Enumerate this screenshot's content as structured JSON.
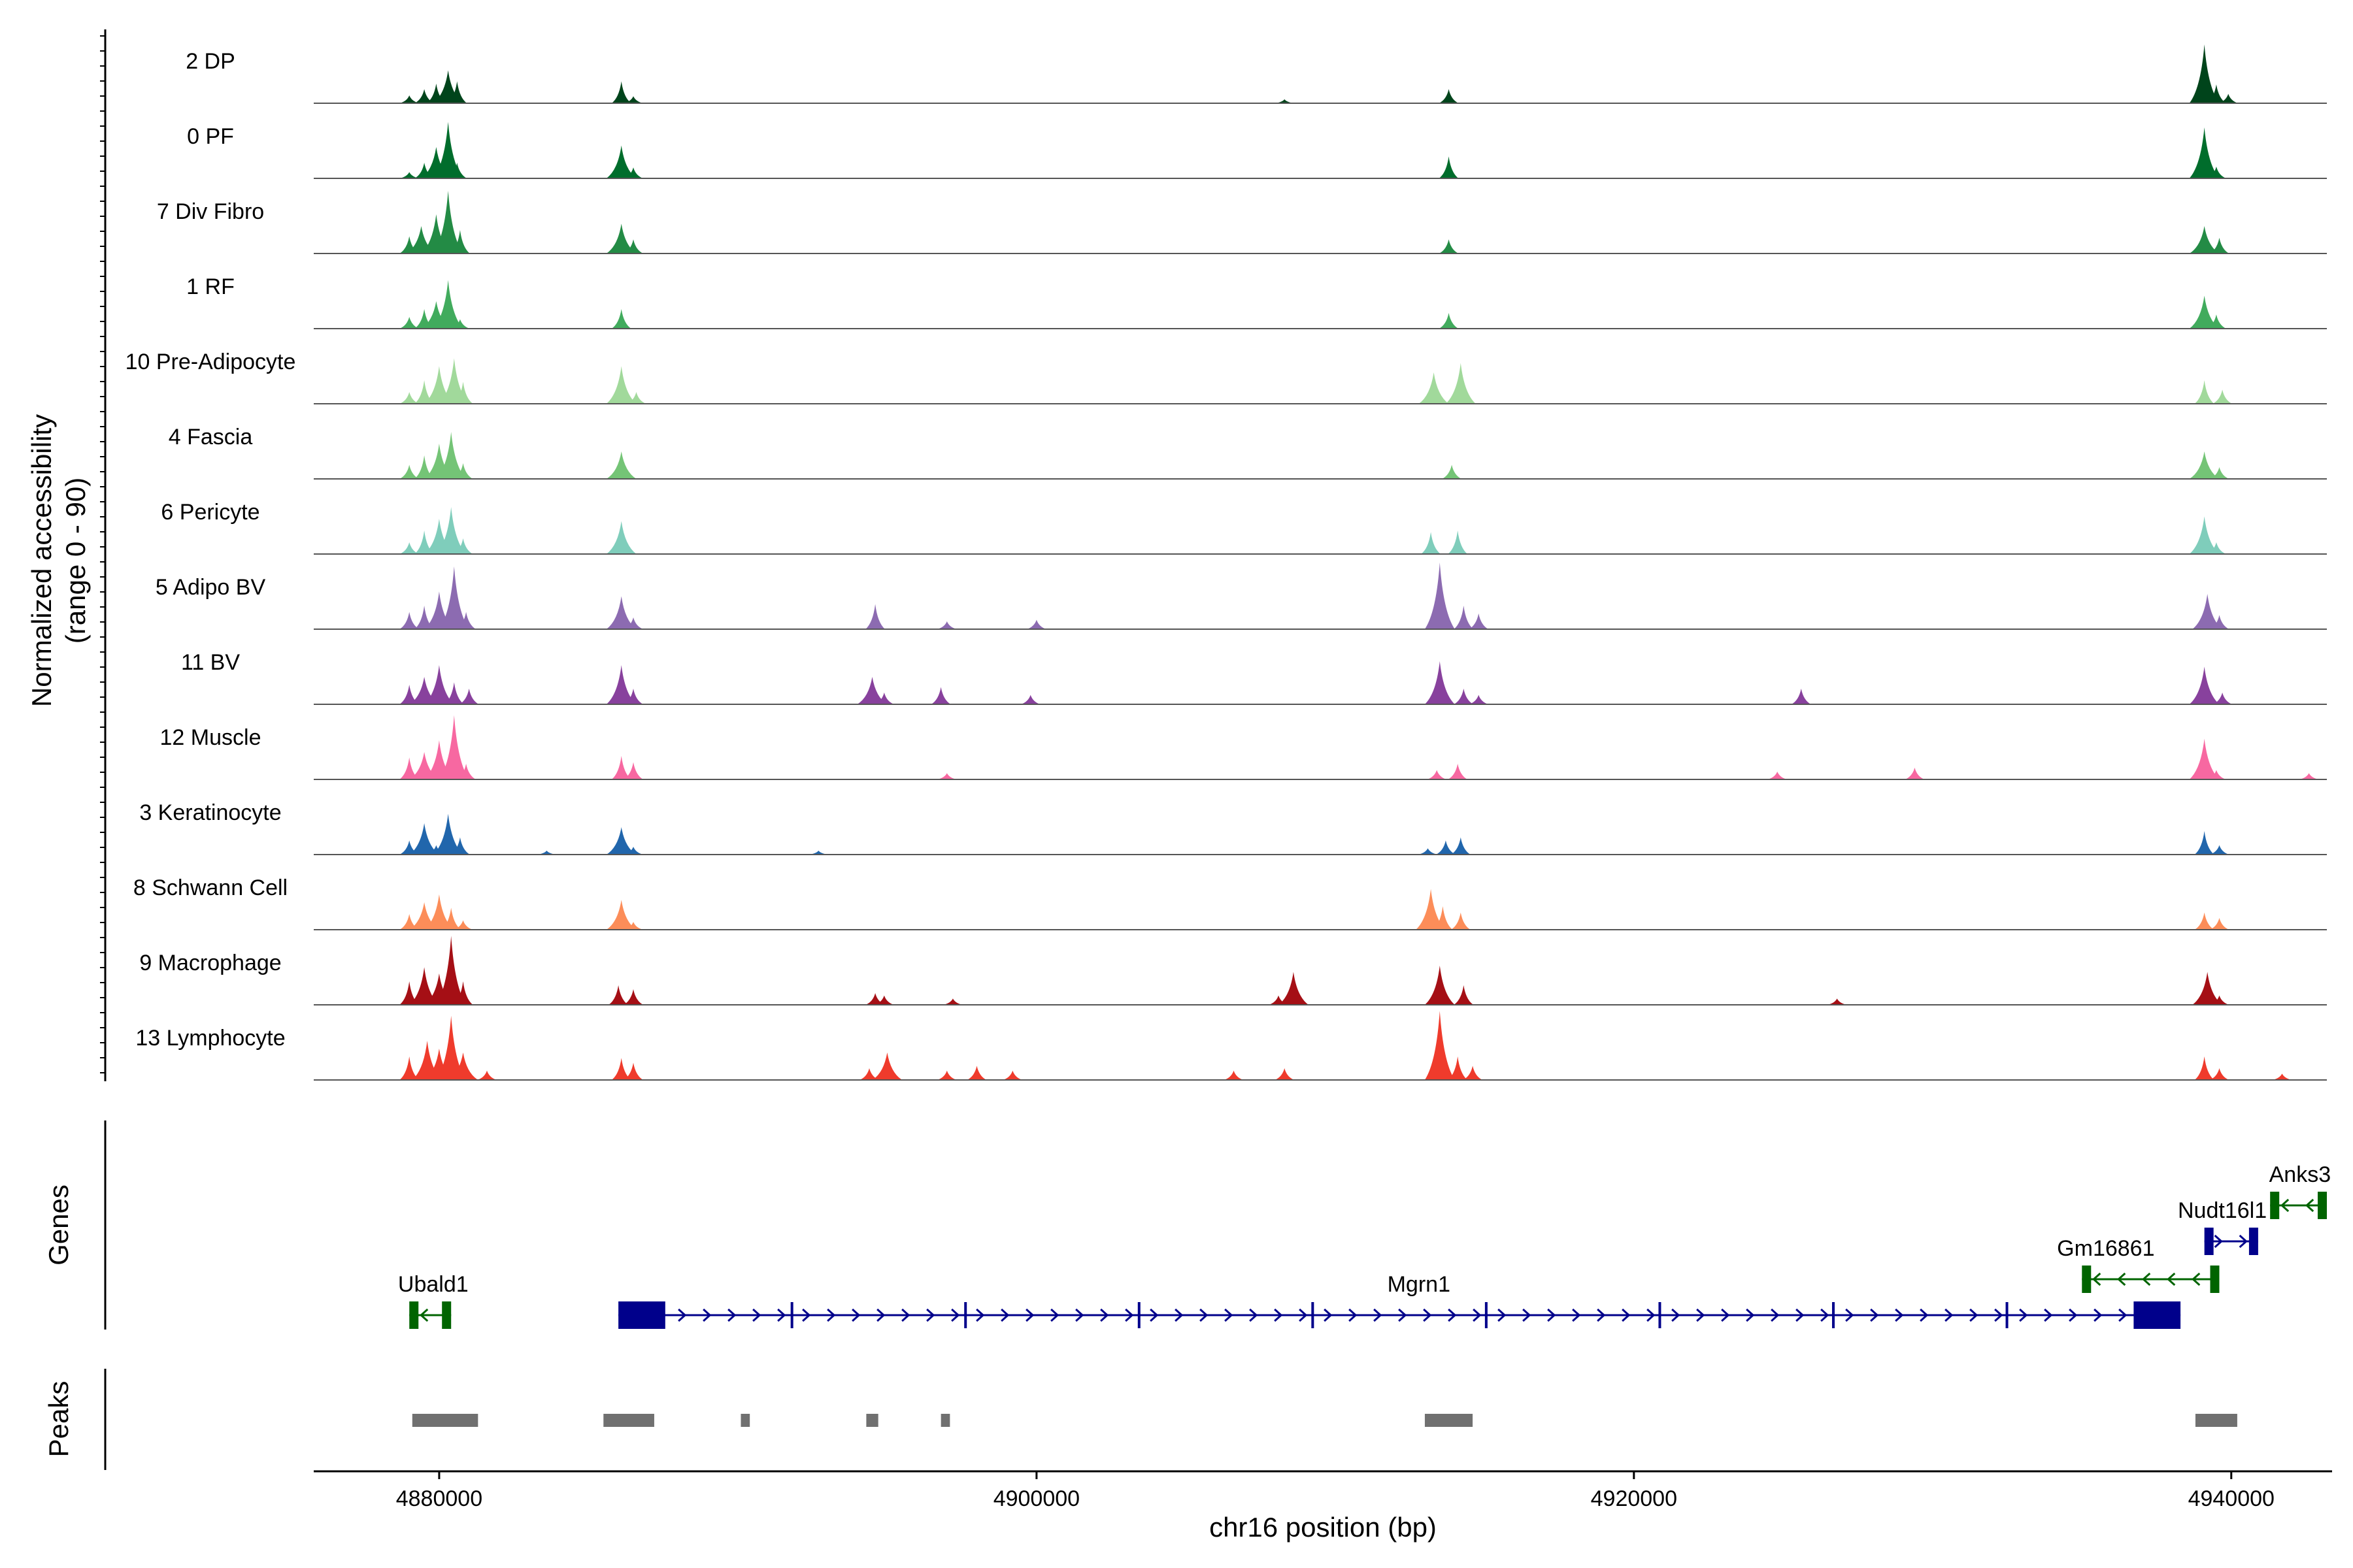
{
  "chart_data": {
    "type": "area",
    "title": "",
    "ylabel_line1": "Normalized accessibility",
    "ylabel_line2": "(range 0 - 90)",
    "genes_label": "Genes",
    "peaks_label": "Peaks",
    "xlabel": "chr16 position (bp)",
    "xlim": [
      4875800,
      4943200
    ],
    "ylim": [
      0,
      90
    ],
    "x_ticks": [
      4880000,
      4900000,
      4920000,
      4940000
    ],
    "x_tick_labels": [
      "4880000",
      "4900000",
      "4920000",
      "4940000"
    ],
    "tracks": [
      {
        "name": "2 DP",
        "color": "#00441b",
        "peaks": [
          [
            4879000,
            10
          ],
          [
            4879500,
            18
          ],
          [
            4879900,
            25
          ],
          [
            4880300,
            42
          ],
          [
            4880600,
            28
          ],
          [
            4886100,
            28
          ],
          [
            4886500,
            9
          ],
          [
            4908300,
            5
          ],
          [
            4913800,
            18
          ],
          [
            4939100,
            75
          ],
          [
            4939500,
            24
          ],
          [
            4939900,
            12
          ]
        ]
      },
      {
        "name": "0 PF",
        "color": "#006d2c",
        "peaks": [
          [
            4879000,
            8
          ],
          [
            4879500,
            20
          ],
          [
            4879900,
            40
          ],
          [
            4880300,
            72
          ],
          [
            4880600,
            20
          ],
          [
            4886100,
            42
          ],
          [
            4886500,
            14
          ],
          [
            4913800,
            28
          ],
          [
            4939100,
            65
          ],
          [
            4939500,
            15
          ]
        ]
      },
      {
        "name": "7 Div Fibro",
        "color": "#238b45",
        "peaks": [
          [
            4879000,
            22
          ],
          [
            4879400,
            35
          ],
          [
            4879900,
            50
          ],
          [
            4880300,
            80
          ],
          [
            4880700,
            30
          ],
          [
            4886100,
            38
          ],
          [
            4886500,
            18
          ],
          [
            4913800,
            18
          ],
          [
            4939100,
            35
          ],
          [
            4939600,
            20
          ]
        ]
      },
      {
        "name": "1 RF",
        "color": "#41ab5d",
        "peaks": [
          [
            4879000,
            15
          ],
          [
            4879500,
            25
          ],
          [
            4879900,
            35
          ],
          [
            4880300,
            62
          ],
          [
            4880700,
            12
          ],
          [
            4886100,
            25
          ],
          [
            4913800,
            20
          ],
          [
            4939100,
            42
          ],
          [
            4939500,
            18
          ]
        ]
      },
      {
        "name": "10 Pre-Adipocyte",
        "color": "#a1d99b",
        "peaks": [
          [
            4879000,
            15
          ],
          [
            4879500,
            30
          ],
          [
            4880000,
            48
          ],
          [
            4880500,
            58
          ],
          [
            4880800,
            28
          ],
          [
            4886100,
            48
          ],
          [
            4886600,
            15
          ],
          [
            4913300,
            40
          ],
          [
            4914200,
            52
          ],
          [
            4939100,
            30
          ],
          [
            4939700,
            18
          ]
        ]
      },
      {
        "name": "4 Fascia",
        "color": "#74c476",
        "peaks": [
          [
            4879000,
            18
          ],
          [
            4879500,
            30
          ],
          [
            4880000,
            45
          ],
          [
            4880400,
            60
          ],
          [
            4880800,
            20
          ],
          [
            4886100,
            35
          ],
          [
            4913900,
            18
          ],
          [
            4939100,
            35
          ],
          [
            4939600,
            15
          ]
        ]
      },
      {
        "name": "6 Pericyte",
        "color": "#7fcdbb",
        "peaks": [
          [
            4879000,
            15
          ],
          [
            4879500,
            30
          ],
          [
            4880000,
            45
          ],
          [
            4880400,
            60
          ],
          [
            4880800,
            20
          ],
          [
            4886100,
            42
          ],
          [
            4913200,
            28
          ],
          [
            4914100,
            30
          ],
          [
            4939100,
            48
          ],
          [
            4939500,
            15
          ]
        ]
      },
      {
        "name": "5 Adipo BV",
        "color": "#8c6bb1",
        "peaks": [
          [
            4879000,
            22
          ],
          [
            4879500,
            30
          ],
          [
            4880000,
            48
          ],
          [
            4880500,
            80
          ],
          [
            4880900,
            22
          ],
          [
            4886100,
            42
          ],
          [
            4886500,
            15
          ],
          [
            4894600,
            32
          ],
          [
            4897000,
            10
          ],
          [
            4900000,
            12
          ],
          [
            4913500,
            85
          ],
          [
            4914300,
            30
          ],
          [
            4914800,
            20
          ],
          [
            4939200,
            45
          ],
          [
            4939600,
            18
          ]
        ]
      },
      {
        "name": "11 BV",
        "color": "#88419d",
        "peaks": [
          [
            4879000,
            25
          ],
          [
            4879500,
            35
          ],
          [
            4880000,
            50
          ],
          [
            4880500,
            28
          ],
          [
            4881000,
            20
          ],
          [
            4886100,
            50
          ],
          [
            4886500,
            20
          ],
          [
            4894500,
            35
          ],
          [
            4894900,
            15
          ],
          [
            4896800,
            22
          ],
          [
            4899800,
            12
          ],
          [
            4913500,
            55
          ],
          [
            4914300,
            20
          ],
          [
            4914800,
            12
          ],
          [
            4925600,
            20
          ],
          [
            4939100,
            48
          ],
          [
            4939700,
            15
          ]
        ]
      },
      {
        "name": "12 Muscle",
        "color": "#f768a1",
        "peaks": [
          [
            4879000,
            28
          ],
          [
            4879500,
            35
          ],
          [
            4880000,
            50
          ],
          [
            4880500,
            82
          ],
          [
            4880900,
            20
          ],
          [
            4886100,
            30
          ],
          [
            4886500,
            22
          ],
          [
            4897000,
            8
          ],
          [
            4913400,
            12
          ],
          [
            4914100,
            20
          ],
          [
            4924800,
            10
          ],
          [
            4929400,
            15
          ],
          [
            4939100,
            52
          ],
          [
            4939500,
            12
          ],
          [
            4942600,
            8
          ]
        ]
      },
      {
        "name": "3 Keratinocyte",
        "color": "#2166ac",
        "peaks": [
          [
            4879000,
            18
          ],
          [
            4879500,
            40
          ],
          [
            4879900,
            12
          ],
          [
            4880300,
            52
          ],
          [
            4880700,
            22
          ],
          [
            4883600,
            5
          ],
          [
            4886100,
            35
          ],
          [
            4886500,
            10
          ],
          [
            4892700,
            5
          ],
          [
            4913100,
            8
          ],
          [
            4913700,
            18
          ],
          [
            4914200,
            22
          ],
          [
            4939100,
            30
          ],
          [
            4939600,
            12
          ]
        ]
      },
      {
        "name": "8 Schwann Cell",
        "color": "#fc8d59",
        "peaks": [
          [
            4879000,
            20
          ],
          [
            4879500,
            35
          ],
          [
            4880000,
            45
          ],
          [
            4880400,
            28
          ],
          [
            4880800,
            12
          ],
          [
            4886100,
            38
          ],
          [
            4886500,
            10
          ],
          [
            4913200,
            52
          ],
          [
            4913600,
            30
          ],
          [
            4914200,
            22
          ],
          [
            4939100,
            22
          ],
          [
            4939600,
            15
          ]
        ]
      },
      {
        "name": "9 Macrophage",
        "color": "#a50f15",
        "peaks": [
          [
            4879000,
            30
          ],
          [
            4879500,
            48
          ],
          [
            4880000,
            40
          ],
          [
            4880400,
            88
          ],
          [
            4880800,
            30
          ],
          [
            4886000,
            25
          ],
          [
            4886500,
            20
          ],
          [
            4894600,
            15
          ],
          [
            4894900,
            12
          ],
          [
            4897200,
            8
          ],
          [
            4908100,
            12
          ],
          [
            4908600,
            42
          ],
          [
            4913500,
            50
          ],
          [
            4914300,
            25
          ],
          [
            4926800,
            8
          ],
          [
            4939200,
            42
          ],
          [
            4939600,
            12
          ]
        ]
      },
      {
        "name": "13 Lymphocyte",
        "color": "#ef3b2c",
        "peaks": [
          [
            4879000,
            30
          ],
          [
            4879600,
            50
          ],
          [
            4880000,
            40
          ],
          [
            4880400,
            82
          ],
          [
            4880800,
            35
          ],
          [
            4881600,
            12
          ],
          [
            4886100,
            28
          ],
          [
            4886500,
            22
          ],
          [
            4894400,
            15
          ],
          [
            4895000,
            35
          ],
          [
            4897000,
            12
          ],
          [
            4898000,
            18
          ],
          [
            4899200,
            12
          ],
          [
            4906600,
            12
          ],
          [
            4908300,
            15
          ],
          [
            4913500,
            88
          ],
          [
            4914100,
            30
          ],
          [
            4914600,
            18
          ],
          [
            4939100,
            30
          ],
          [
            4939600,
            15
          ],
          [
            4941700,
            8
          ]
        ]
      }
    ],
    "genes": [
      {
        "name": "Ubald1",
        "strand": "-",
        "start": 4879000,
        "end": 4880400,
        "color": "#006400",
        "row": 1,
        "label_x": 4879800
      },
      {
        "name": "Mgrn1",
        "strand": "+",
        "start": 4886000,
        "end": 4938300,
        "color": "#00008b",
        "row": 1,
        "label_x": 4912800
      },
      {
        "name": "Gm16861",
        "strand": "-",
        "start": 4935000,
        "end": 4939600,
        "color": "#006400",
        "row": 2,
        "label_x": 4935800
      },
      {
        "name": "Nudt16l1",
        "strand": "+",
        "start": 4939100,
        "end": 4940900,
        "color": "#00008b",
        "row": 3,
        "label_x": 4939700
      },
      {
        "name": "Anks3",
        "strand": "-",
        "start": 4941300,
        "end": 4943200,
        "color": "#006400",
        "row": 4,
        "label_x": 4942300
      }
    ],
    "peak_regions": [
      [
        4879100,
        4881300
      ],
      [
        4885500,
        4887200
      ],
      [
        4890100,
        4890400
      ],
      [
        4894300,
        4894700
      ],
      [
        4896800,
        4897100
      ],
      [
        4913000,
        4914600
      ],
      [
        4938800,
        4940200
      ]
    ]
  }
}
